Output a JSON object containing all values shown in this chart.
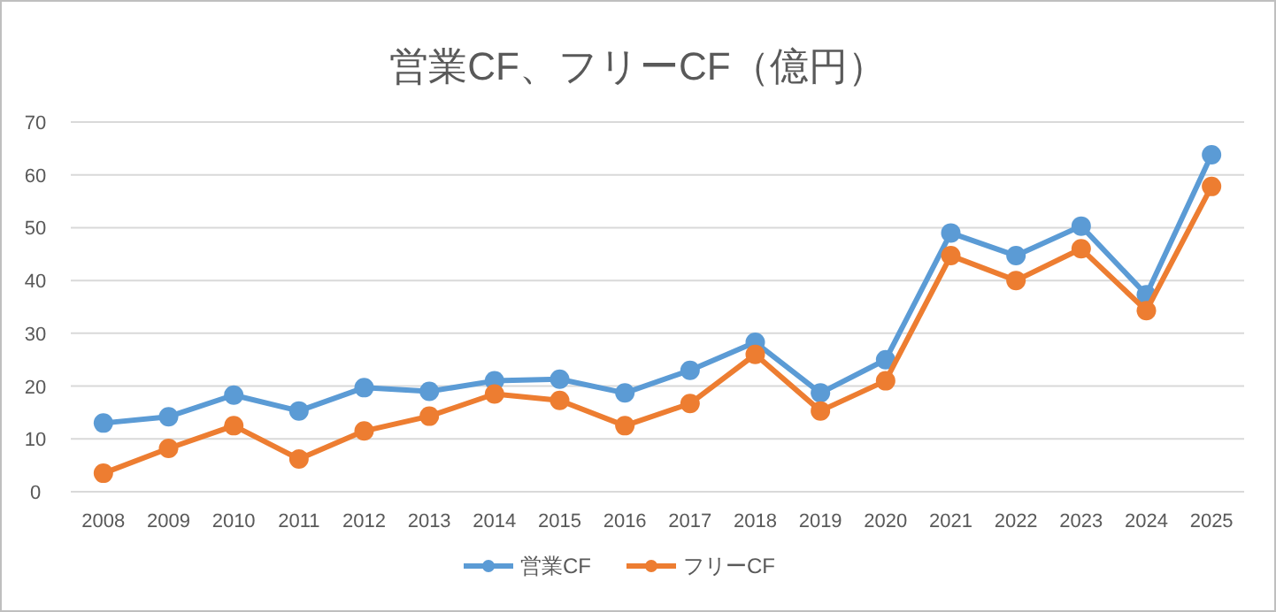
{
  "chart_data": {
    "type": "line",
    "title": "営業CF、フリーCF（億円）",
    "categories": [
      "2008",
      "2009",
      "2010",
      "2011",
      "2012",
      "2013",
      "2014",
      "2015",
      "2016",
      "2017",
      "2018",
      "2019",
      "2020",
      "2021",
      "2022",
      "2023",
      "2024",
      "2025"
    ],
    "series": [
      {
        "name": "営業CF",
        "color": "#5b9bd5",
        "values": [
          13,
          14.2,
          18.3,
          15.3,
          19.7,
          19,
          21,
          21.3,
          18.7,
          23,
          28.3,
          18.7,
          25,
          49,
          44.7,
          50.3,
          37.3,
          63.8
        ]
      },
      {
        "name": "フリーCF",
        "color": "#ed7d31",
        "values": [
          3.5,
          8.2,
          12.5,
          6.2,
          11.5,
          14.3,
          18.5,
          17.3,
          12.5,
          16.7,
          26,
          15.3,
          21,
          44.7,
          40,
          46,
          34.3,
          57.8
        ]
      }
    ],
    "ylim": [
      0,
      70
    ],
    "yticks": [
      0,
      10,
      20,
      30,
      40,
      50,
      60,
      70
    ],
    "grid": "y",
    "legend": "bottom",
    "marker": "circle",
    "line_style": "solid"
  }
}
